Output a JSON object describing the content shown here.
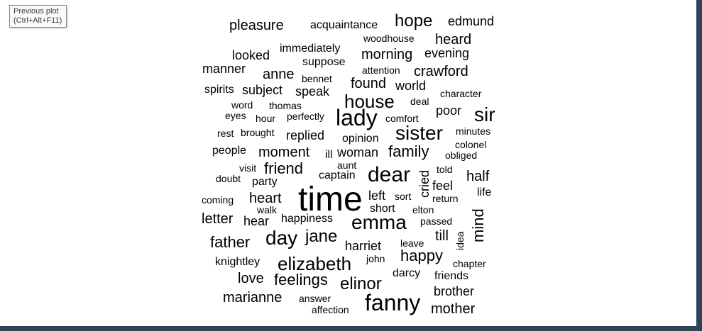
{
  "tooltip": {
    "title": "Previous plot",
    "shortcut": "(Ctrl+Alt+F11)"
  },
  "colors": {
    "frame": "#2e4457",
    "background": "#ffffff",
    "text": "#000000"
  },
  "wordcloud": {
    "words": [
      {
        "text": "pleasure",
        "size": 20,
        "vertical": false
      },
      {
        "text": "acquaintance",
        "size": 16,
        "vertical": false
      },
      {
        "text": "hope",
        "size": 24,
        "vertical": false
      },
      {
        "text": "edmund",
        "size": 18,
        "vertical": false
      },
      {
        "text": "woodhouse",
        "size": 14,
        "vertical": false
      },
      {
        "text": "heard",
        "size": 20,
        "vertical": false
      },
      {
        "text": "looked",
        "size": 18,
        "vertical": false
      },
      {
        "text": "immediately",
        "size": 16,
        "vertical": false
      },
      {
        "text": "morning",
        "size": 20,
        "vertical": false
      },
      {
        "text": "evening",
        "size": 18,
        "vertical": false
      },
      {
        "text": "manner",
        "size": 18,
        "vertical": false
      },
      {
        "text": "suppose",
        "size": 16,
        "vertical": false
      },
      {
        "text": "anne",
        "size": 20,
        "vertical": false
      },
      {
        "text": "attention",
        "size": 14,
        "vertical": false
      },
      {
        "text": "crawford",
        "size": 20,
        "vertical": false
      },
      {
        "text": "bennet",
        "size": 14,
        "vertical": false
      },
      {
        "text": "found",
        "size": 20,
        "vertical": false
      },
      {
        "text": "world",
        "size": 18,
        "vertical": false
      },
      {
        "text": "spirits",
        "size": 16,
        "vertical": false
      },
      {
        "text": "subject",
        "size": 18,
        "vertical": false
      },
      {
        "text": "speak",
        "size": 18,
        "vertical": false
      },
      {
        "text": "character",
        "size": 14,
        "vertical": false
      },
      {
        "text": "house",
        "size": 26,
        "vertical": false
      },
      {
        "text": "word",
        "size": 14,
        "vertical": false
      },
      {
        "text": "thomas",
        "size": 14,
        "vertical": false
      },
      {
        "text": "deal",
        "size": 14,
        "vertical": false
      },
      {
        "text": "poor",
        "size": 18,
        "vertical": false
      },
      {
        "text": "sir",
        "size": 28,
        "vertical": false
      },
      {
        "text": "lady",
        "size": 32,
        "vertical": false
      },
      {
        "text": "eyes",
        "size": 14,
        "vertical": false
      },
      {
        "text": "hour",
        "size": 14,
        "vertical": false
      },
      {
        "text": "perfectly",
        "size": 14,
        "vertical": false
      },
      {
        "text": "comfort",
        "size": 14,
        "vertical": false
      },
      {
        "text": "rest",
        "size": 14,
        "vertical": false
      },
      {
        "text": "brought",
        "size": 14,
        "vertical": false
      },
      {
        "text": "replied",
        "size": 18,
        "vertical": false
      },
      {
        "text": "sister",
        "size": 28,
        "vertical": false
      },
      {
        "text": "minutes",
        "size": 14,
        "vertical": false
      },
      {
        "text": "opinion",
        "size": 16,
        "vertical": false
      },
      {
        "text": "colonel",
        "size": 14,
        "vertical": false
      },
      {
        "text": "people",
        "size": 16,
        "vertical": false
      },
      {
        "text": "moment",
        "size": 20,
        "vertical": false
      },
      {
        "text": "ill",
        "size": 16,
        "vertical": false
      },
      {
        "text": "woman",
        "size": 18,
        "vertical": false
      },
      {
        "text": "family",
        "size": 22,
        "vertical": false
      },
      {
        "text": "obliged",
        "size": 14,
        "vertical": false
      },
      {
        "text": "aunt",
        "size": 14,
        "vertical": false
      },
      {
        "text": "visit",
        "size": 14,
        "vertical": false
      },
      {
        "text": "friend",
        "size": 22,
        "vertical": false
      },
      {
        "text": "dear",
        "size": 30,
        "vertical": false
      },
      {
        "text": "told",
        "size": 14,
        "vertical": false
      },
      {
        "text": "captain",
        "size": 16,
        "vertical": false
      },
      {
        "text": "half",
        "size": 20,
        "vertical": false
      },
      {
        "text": "doubt",
        "size": 14,
        "vertical": false
      },
      {
        "text": "party",
        "size": 16,
        "vertical": false
      },
      {
        "text": "cried",
        "size": 18,
        "vertical": true
      },
      {
        "text": "feel",
        "size": 18,
        "vertical": false
      },
      {
        "text": "life",
        "size": 16,
        "vertical": false
      },
      {
        "text": "time",
        "size": 48,
        "vertical": false
      },
      {
        "text": "left",
        "size": 18,
        "vertical": false
      },
      {
        "text": "sort",
        "size": 14,
        "vertical": false
      },
      {
        "text": "return",
        "size": 14,
        "vertical": false
      },
      {
        "text": "coming",
        "size": 14,
        "vertical": false
      },
      {
        "text": "heart",
        "size": 20,
        "vertical": false
      },
      {
        "text": "walk",
        "size": 14,
        "vertical": false
      },
      {
        "text": "short",
        "size": 16,
        "vertical": false
      },
      {
        "text": "elton",
        "size": 14,
        "vertical": false
      },
      {
        "text": "mind",
        "size": 22,
        "vertical": true
      },
      {
        "text": "letter",
        "size": 20,
        "vertical": false
      },
      {
        "text": "hear",
        "size": 18,
        "vertical": false
      },
      {
        "text": "happiness",
        "size": 16,
        "vertical": false
      },
      {
        "text": "passed",
        "size": 14,
        "vertical": false
      },
      {
        "text": "emma",
        "size": 28,
        "vertical": false
      },
      {
        "text": "till",
        "size": 20,
        "vertical": false
      },
      {
        "text": "idea",
        "size": 14,
        "vertical": true
      },
      {
        "text": "father",
        "size": 22,
        "vertical": false
      },
      {
        "text": "day",
        "size": 28,
        "vertical": false
      },
      {
        "text": "jane",
        "size": 24,
        "vertical": false
      },
      {
        "text": "leave",
        "size": 14,
        "vertical": false
      },
      {
        "text": "harriet",
        "size": 18,
        "vertical": false
      },
      {
        "text": "happy",
        "size": 22,
        "vertical": false
      },
      {
        "text": "knightley",
        "size": 16,
        "vertical": false
      },
      {
        "text": "john",
        "size": 14,
        "vertical": false
      },
      {
        "text": "chapter",
        "size": 14,
        "vertical": false
      },
      {
        "text": "elizabeth",
        "size": 26,
        "vertical": false
      },
      {
        "text": "darcy",
        "size": 16,
        "vertical": false
      },
      {
        "text": "friends",
        "size": 16,
        "vertical": false
      },
      {
        "text": "love",
        "size": 20,
        "vertical": false
      },
      {
        "text": "feelings",
        "size": 22,
        "vertical": false
      },
      {
        "text": "elinor",
        "size": 24,
        "vertical": false
      },
      {
        "text": "brother",
        "size": 18,
        "vertical": false
      },
      {
        "text": "marianne",
        "size": 20,
        "vertical": false
      },
      {
        "text": "answer",
        "size": 14,
        "vertical": false
      },
      {
        "text": "fanny",
        "size": 32,
        "vertical": false
      },
      {
        "text": "affection",
        "size": 14,
        "vertical": false
      },
      {
        "text": "mother",
        "size": 20,
        "vertical": false
      }
    ]
  }
}
